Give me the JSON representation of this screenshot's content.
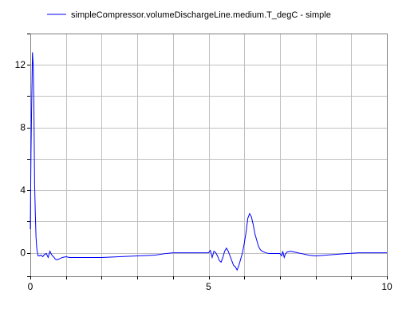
{
  "chart_data": {
    "type": "line",
    "title": "",
    "xlabel": "",
    "ylabel": "",
    "xlim": [
      0,
      10
    ],
    "ylim": [
      -1.5,
      14
    ],
    "x_ticks": [
      0,
      5,
      10
    ],
    "x_tick_labels": [
      "0",
      "5",
      "10"
    ],
    "y_ticks": [
      0,
      4,
      8,
      12
    ],
    "y_tick_labels": [
      "0",
      "4",
      "8",
      "12"
    ],
    "x_gridlines": [
      0,
      1,
      2,
      3,
      4,
      5,
      6,
      7,
      8,
      9,
      10
    ],
    "y_gridlines": [
      -1.5,
      0,
      2,
      4,
      6,
      8,
      10,
      12,
      14
    ],
    "grid": true,
    "legend_position": "top",
    "series": [
      {
        "name": "simpleCompressor.volumeDischargeLine.medium.T_degC - simple",
        "color": "#0000ff",
        "x": [
          0,
          0.02,
          0.04,
          0.06,
          0.08,
          0.1,
          0.12,
          0.14,
          0.16,
          0.18,
          0.2,
          0.22,
          0.25,
          0.3,
          0.35,
          0.4,
          0.45,
          0.5,
          0.55,
          0.58,
          0.62,
          0.65,
          0.7,
          0.75,
          0.8,
          0.85,
          0.9,
          1.0,
          1.1,
          1.2,
          1.4,
          1.7,
          2.0,
          2.5,
          3.0,
          3.5,
          3.8,
          4.0,
          4.3,
          4.6,
          4.9,
          5.0,
          5.05,
          5.1,
          5.15,
          5.2,
          5.25,
          5.3,
          5.35,
          5.4,
          5.45,
          5.5,
          5.55,
          5.6,
          5.65,
          5.7,
          5.75,
          5.8,
          5.85,
          5.9,
          5.95,
          6.0,
          6.05,
          6.1,
          6.15,
          6.2,
          6.25,
          6.3,
          6.35,
          6.4,
          6.45,
          6.5,
          6.55,
          6.6,
          6.7,
          6.8,
          6.9,
          7.0,
          7.05,
          7.08,
          7.12,
          7.15,
          7.2,
          7.3,
          7.4,
          7.5,
          7.6,
          7.7,
          7.8,
          8.0,
          8.3,
          8.6,
          8.9,
          9.2,
          9.5,
          9.8,
          10.0
        ],
        "y": [
          1.5,
          6.5,
          9.8,
          12.8,
          12.0,
          9.5,
          4.5,
          2.5,
          1.0,
          0.3,
          0.0,
          -0.2,
          -0.2,
          -0.15,
          -0.25,
          -0.1,
          -0.05,
          -0.3,
          0.1,
          -0.05,
          -0.2,
          -0.25,
          -0.4,
          -0.45,
          -0.4,
          -0.35,
          -0.3,
          -0.25,
          -0.3,
          -0.3,
          -0.3,
          -0.3,
          -0.3,
          -0.25,
          -0.2,
          -0.15,
          -0.05,
          0.0,
          0.0,
          0.0,
          0.0,
          0.0,
          0.15,
          -0.3,
          0.1,
          0.0,
          -0.2,
          -0.5,
          -0.6,
          -0.3,
          0.1,
          0.3,
          0.1,
          -0.2,
          -0.5,
          -0.8,
          -0.9,
          -1.1,
          -0.8,
          -0.4,
          0.0,
          0.6,
          1.3,
          2.2,
          2.5,
          2.3,
          1.8,
          1.2,
          0.8,
          0.4,
          0.2,
          0.1,
          0.05,
          0.0,
          -0.05,
          -0.05,
          -0.05,
          -0.05,
          -0.2,
          0.1,
          -0.3,
          -0.1,
          0.05,
          0.1,
          0.05,
          0.0,
          -0.05,
          -0.1,
          -0.15,
          -0.2,
          -0.15,
          -0.1,
          -0.05,
          0.0,
          0.0,
          0.0,
          0.0
        ]
      }
    ]
  }
}
